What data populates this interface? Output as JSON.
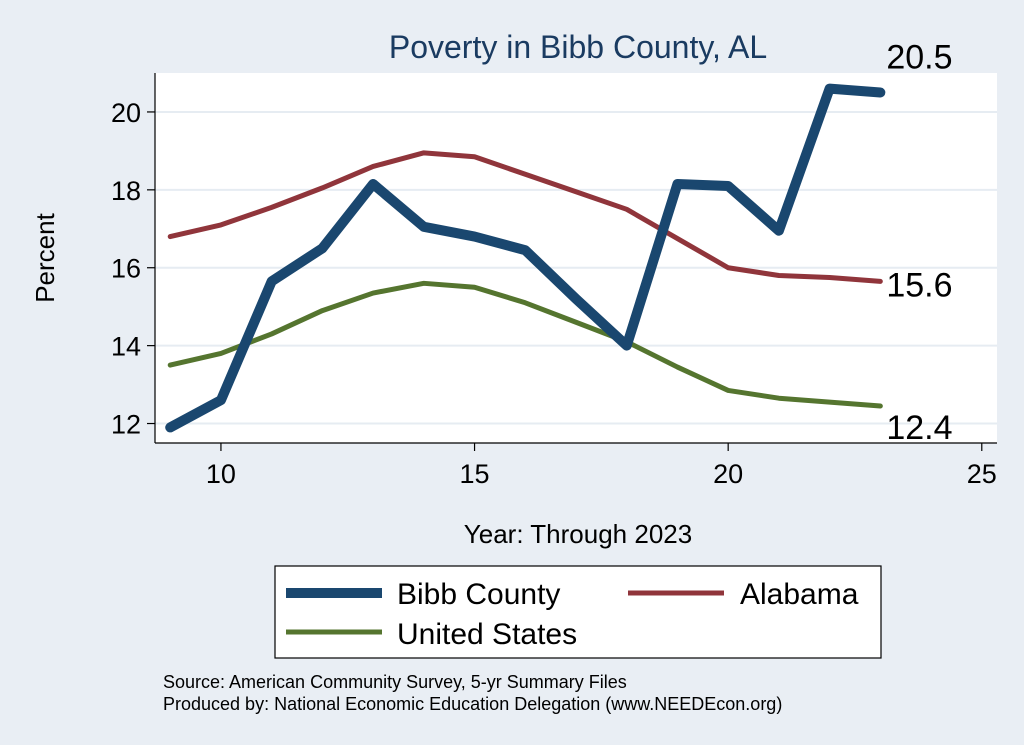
{
  "chart_data": {
    "type": "line",
    "title": "Poverty in Bibb County, AL",
    "xlabel": "Year: Through 2023",
    "ylabel": "Percent",
    "xlim": [
      8.7,
      25.3
    ],
    "ylim": [
      11.5,
      21.0
    ],
    "xticks": [
      10,
      15,
      20,
      25
    ],
    "yticks": [
      12,
      14,
      16,
      18,
      20
    ],
    "grid": true,
    "series": [
      {
        "name": "Bibb County",
        "color": "#1a476f",
        "x": [
          9,
          10,
          11,
          12,
          13,
          14,
          15,
          16,
          17,
          18,
          19,
          20,
          21,
          22,
          23
        ],
        "y": [
          11.9,
          12.6,
          15.65,
          16.5,
          18.15,
          17.05,
          16.8,
          16.45,
          15.2,
          14.0,
          18.15,
          18.1,
          16.95,
          20.6,
          20.5
        ],
        "end_label": "20.5"
      },
      {
        "name": "Alabama",
        "color": "#90353b",
        "x": [
          9,
          10,
          11,
          12,
          13,
          14,
          15,
          16,
          17,
          18,
          19,
          20,
          21,
          22,
          23
        ],
        "y": [
          16.8,
          17.1,
          17.55,
          18.05,
          18.6,
          18.95,
          18.85,
          18.4,
          17.95,
          17.5,
          16.75,
          16.0,
          15.8,
          15.75,
          15.65
        ],
        "end_label": "15.6"
      },
      {
        "name": "United States",
        "color": "#55752f",
        "x": [
          9,
          10,
          11,
          12,
          13,
          14,
          15,
          16,
          17,
          18,
          19,
          20,
          21,
          22,
          23
        ],
        "y": [
          13.5,
          13.8,
          14.3,
          14.9,
          15.35,
          15.6,
          15.5,
          15.1,
          14.6,
          14.1,
          13.45,
          12.85,
          12.65,
          12.55,
          12.45
        ],
        "end_label": "12.4"
      }
    ],
    "legend": [
      "Bibb County",
      "Alabama",
      "United States"
    ],
    "legend_position": "bottom"
  },
  "source": {
    "line1": "Source: American Community Survey, 5-yr Summary Files",
    "line2": "Produced by: National Economic Education Delegation (www.NEEDEcon.org)"
  }
}
